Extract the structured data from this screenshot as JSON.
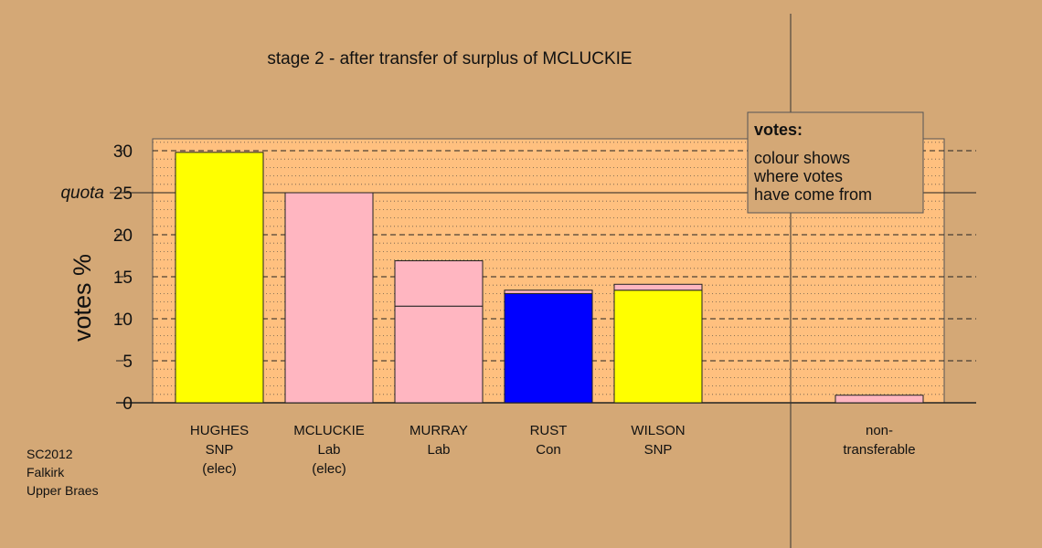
{
  "chart_data": {
    "type": "bar",
    "title": "stage 2 - after transfer of surplus of MCLUCKIE",
    "ylabel": "votes %",
    "ylim": [
      0,
      31.5
    ],
    "yticks": [
      0,
      5,
      10,
      15,
      20,
      25,
      30
    ],
    "quota": {
      "label": "quota",
      "value": 25
    },
    "candidates": [
      {
        "lines": [
          "HUGHES",
          "SNP",
          "(elec)"
        ],
        "segments": [
          {
            "value": 29.8,
            "color": "#ffff00"
          }
        ]
      },
      {
        "lines": [
          "MCLUCKIE",
          "Lab",
          "(elec)"
        ],
        "segments": [
          {
            "value": 25.0,
            "color": "#ffb6c1"
          }
        ]
      },
      {
        "lines": [
          "MURRAY",
          "Lab"
        ],
        "segments": [
          {
            "value": 11.5,
            "color": "#ffb6c1"
          },
          {
            "value": 5.4,
            "color": "#ffb6c1"
          }
        ]
      },
      {
        "lines": [
          "RUST",
          "Con"
        ],
        "segments": [
          {
            "value": 13.0,
            "color": "#0000ff"
          },
          {
            "value": 0.4,
            "color": "#ffb6c1"
          }
        ]
      },
      {
        "lines": [
          "WILSON",
          "SNP"
        ],
        "segments": [
          {
            "value": 13.4,
            "color": "#ffff00"
          },
          {
            "value": 0.7,
            "color": "#ffb6c1"
          }
        ]
      }
    ],
    "nontransferable": {
      "lines": [
        "non-",
        "transferable"
      ],
      "segments": [
        {
          "value": 0.9,
          "color": "#ffb6c1"
        }
      ]
    },
    "legend": {
      "title": "votes:",
      "lines": [
        "colour shows",
        "where votes",
        "have come from"
      ]
    }
  },
  "footer": [
    "SC2012",
    "Falkirk",
    "Upper Braes"
  ],
  "colors": {
    "background": "#d4a876",
    "plot_background": "#ffc07f",
    "legend_background": "#d4a876"
  }
}
